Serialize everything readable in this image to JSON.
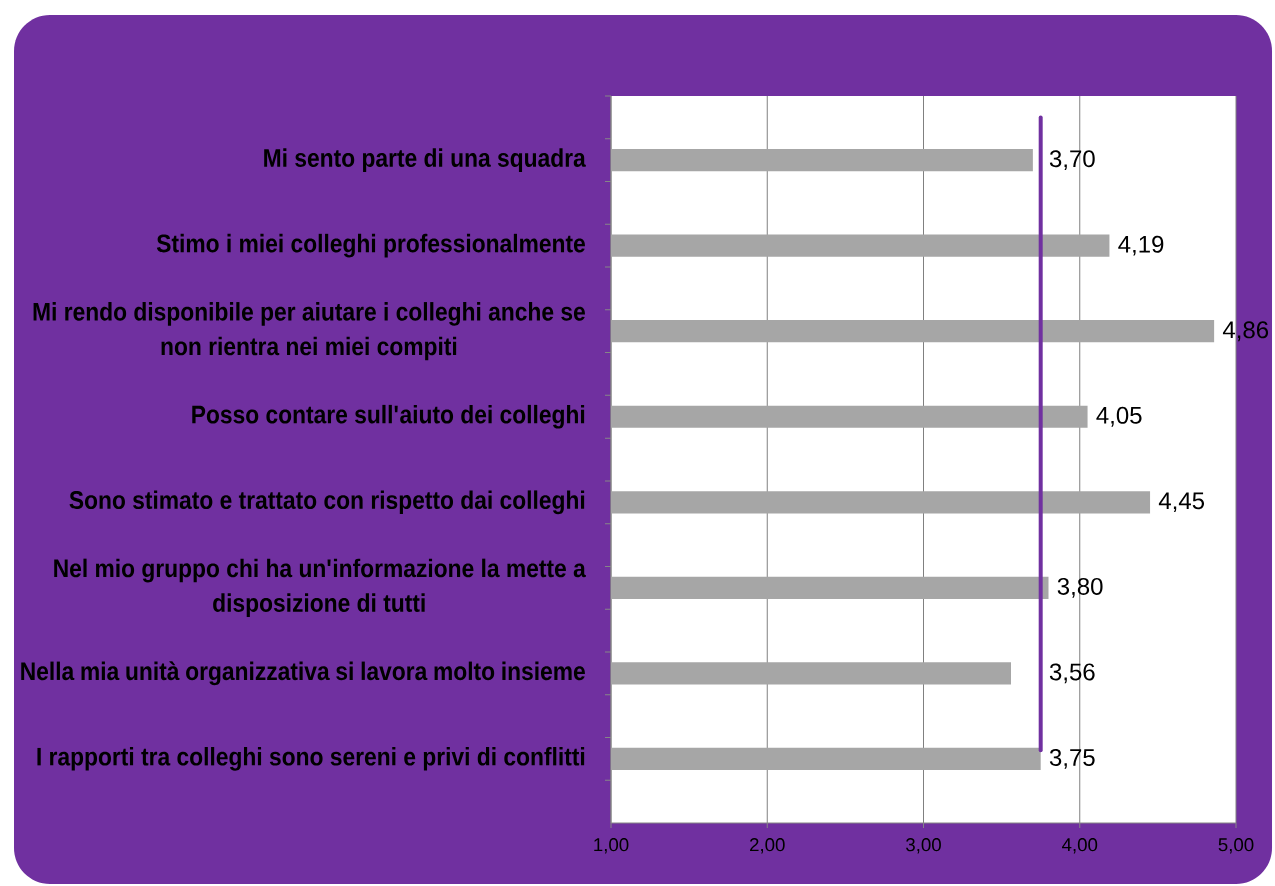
{
  "chart_data": {
    "type": "bar",
    "orientation": "horizontal",
    "categories": [
      "Mi sento parte di una squadra",
      "Stimo i miei colleghi professionalmente",
      "Mi rendo disponibile per aiutare i colleghi anche se non rientra nei miei compiti",
      "Posso contare sull'aiuto dei colleghi",
      "Sono stimato e trattato con rispetto dai colleghi",
      "Nel mio gruppo chi ha un'informazione la mette a disposizione di tutti",
      "Nella mia unità organizzativa si lavora molto insieme",
      "I rapporti tra colleghi sono sereni e privi di conflitti"
    ],
    "values": [
      3.7,
      4.19,
      4.86,
      4.05,
      4.45,
      3.8,
      3.56,
      3.75
    ],
    "value_labels": [
      "3,70",
      "4,19",
      "4,86",
      "4,05",
      "4,45",
      "3,80",
      "3,56",
      "3,75"
    ],
    "color": "#a6a6a6",
    "xlim": [
      1,
      5
    ],
    "xticks": [
      {
        "value": 1,
        "label": "1,00"
      },
      {
        "value": 2,
        "label": "2,00"
      },
      {
        "value": 3,
        "label": "3,00"
      },
      {
        "value": 4,
        "label": "4,00"
      },
      {
        "value": 5,
        "label": "5,00"
      }
    ],
    "grid": "x",
    "ref_lines": [
      {
        "axis": "x",
        "value": 3.75,
        "color": "#7030a0"
      }
    ]
  }
}
